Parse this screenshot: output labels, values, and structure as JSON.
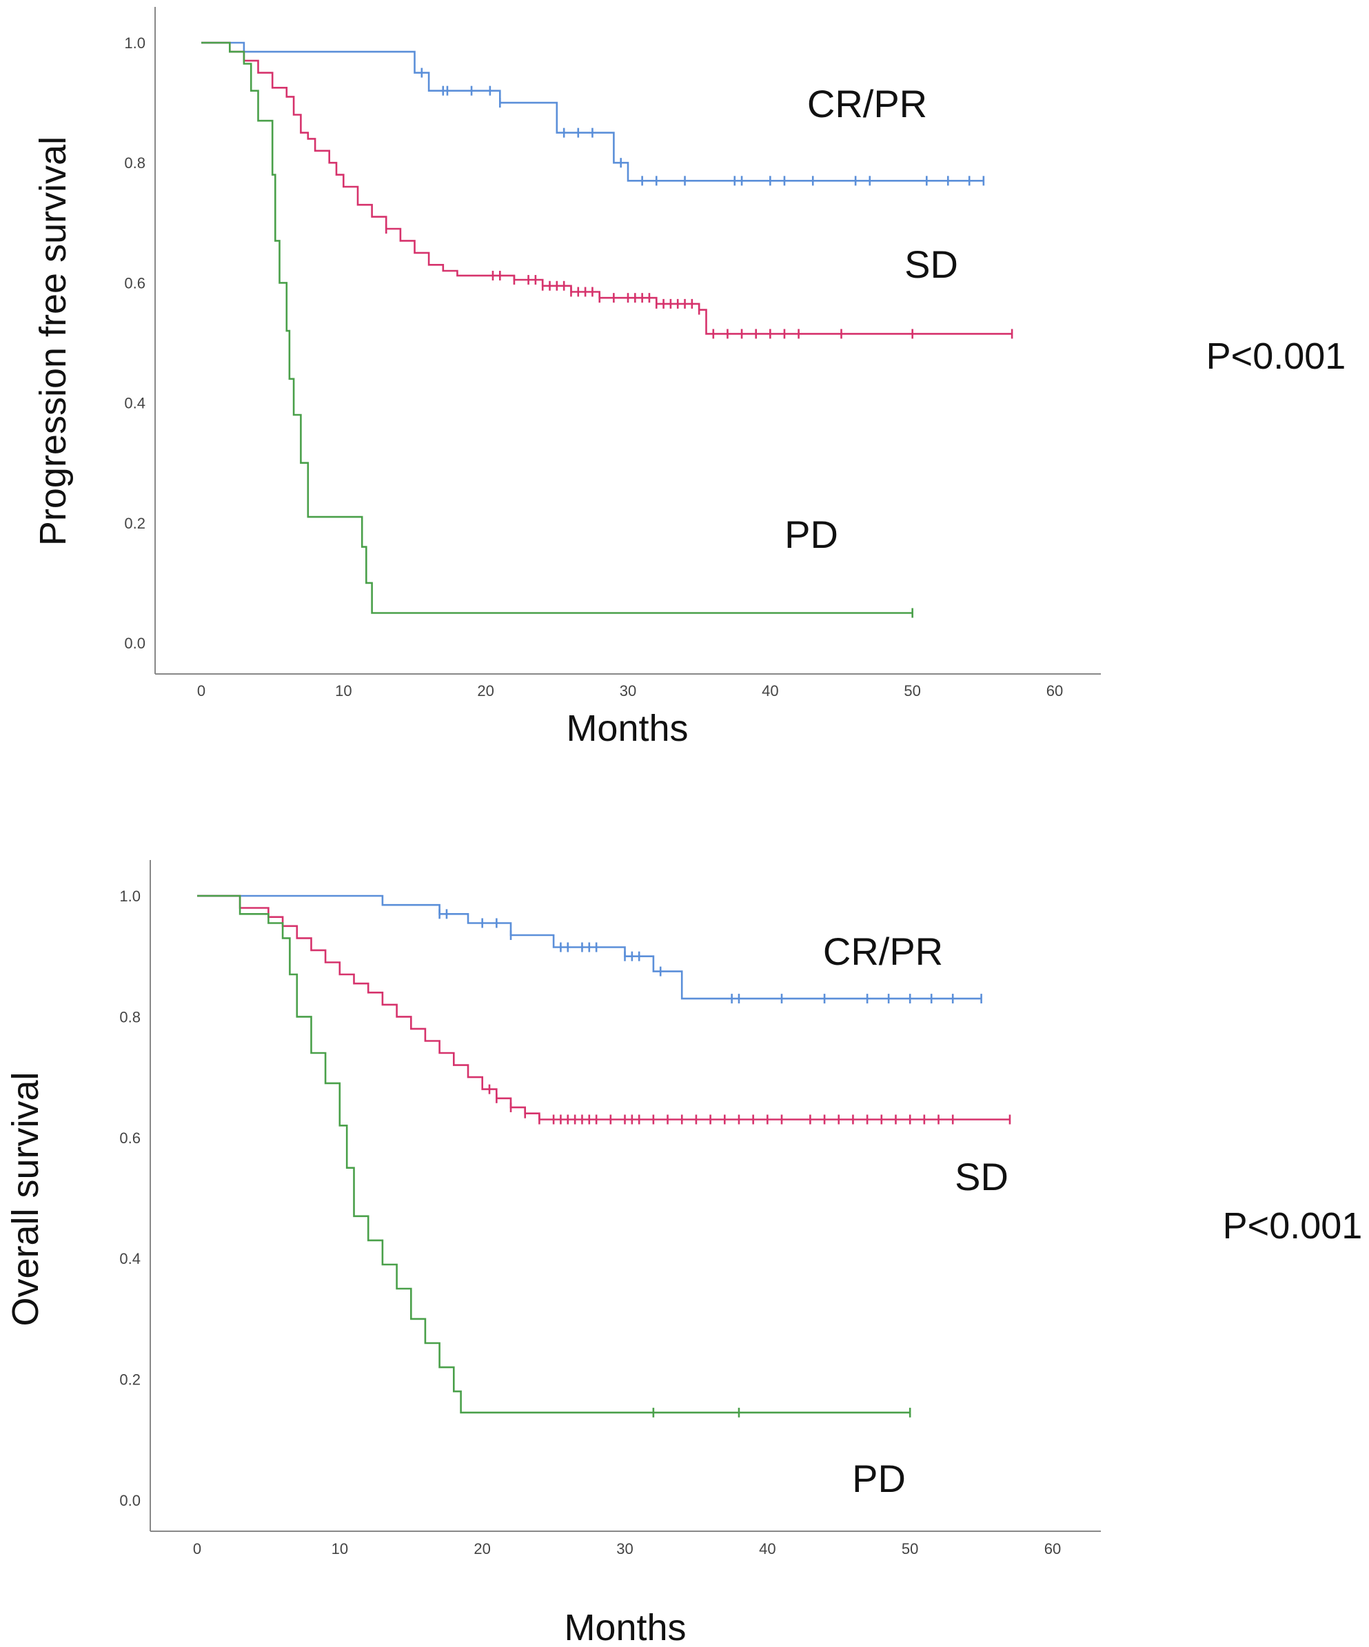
{
  "chart_data": [
    {
      "type": "line",
      "subtype": "kaplan-meier",
      "title": "",
      "xlabel": "Months",
      "ylabel": "Progression free survival",
      "xlim": [
        -3,
        63
      ],
      "ylim": [
        -0.05,
        1.05
      ],
      "xticks": [
        0,
        10,
        20,
        30,
        40,
        50,
        60
      ],
      "yticks": [
        0.0,
        0.2,
        0.4,
        0.6,
        0.8,
        1.0
      ],
      "xtick_labels": [
        "0",
        "10",
        "20",
        "30",
        "40",
        "50",
        "60"
      ],
      "ytick_labels": [
        "0.0",
        "0.2",
        "0.4",
        "0.6",
        "0.8",
        "1.0"
      ],
      "pvalue": "P<0.001",
      "series": [
        {
          "name": "CR/PR",
          "color": "#5b8fd9",
          "steps": [
            [
              0,
              1.0
            ],
            [
              3,
              0.985
            ],
            [
              15,
              0.95
            ],
            [
              16,
              0.92
            ],
            [
              21,
              0.9
            ],
            [
              25,
              0.85
            ],
            [
              29,
              0.8
            ],
            [
              30,
              0.77
            ],
            [
              55,
              0.77
            ]
          ],
          "censors": [
            15.5,
            17,
            17.3,
            19,
            20.3,
            21,
            25.5,
            26.5,
            27.5,
            29.5,
            31,
            32,
            34,
            37.5,
            38,
            40,
            41,
            43,
            46,
            47,
            51,
            52.5,
            54,
            55
          ]
        },
        {
          "name": "SD",
          "color": "#d6336c",
          "steps": [
            [
              0,
              1.0
            ],
            [
              2,
              0.985
            ],
            [
              3,
              0.97
            ],
            [
              4,
              0.95
            ],
            [
              5,
              0.925
            ],
            [
              6,
              0.91
            ],
            [
              6.5,
              0.88
            ],
            [
              7,
              0.85
            ],
            [
              7.5,
              0.84
            ],
            [
              8,
              0.82
            ],
            [
              9,
              0.8
            ],
            [
              9.5,
              0.78
            ],
            [
              10,
              0.76
            ],
            [
              11,
              0.73
            ],
            [
              12,
              0.71
            ],
            [
              13,
              0.69
            ],
            [
              14,
              0.67
            ],
            [
              15,
              0.65
            ],
            [
              16,
              0.63
            ],
            [
              17,
              0.62
            ],
            [
              18,
              0.612
            ],
            [
              22,
              0.605
            ],
            [
              24,
              0.595
            ],
            [
              26,
              0.585
            ],
            [
              28,
              0.575
            ],
            [
              32,
              0.565
            ],
            [
              35,
              0.555
            ],
            [
              35.5,
              0.515
            ],
            [
              57,
              0.515
            ]
          ],
          "censors": [
            13,
            20.5,
            21,
            22,
            23,
            23.5,
            24,
            24.5,
            25,
            25.5,
            26,
            26.5,
            27,
            27.5,
            28,
            29,
            30,
            30.5,
            31,
            31.5,
            32,
            32.5,
            33,
            33.5,
            34,
            34.5,
            35,
            36,
            37,
            38,
            39,
            40,
            41,
            42,
            45,
            50,
            57
          ]
        },
        {
          "name": "PD",
          "color": "#4aa04a",
          "steps": [
            [
              0,
              1.0
            ],
            [
              2,
              0.985
            ],
            [
              3,
              0.965
            ],
            [
              3.5,
              0.92
            ],
            [
              4,
              0.87
            ],
            [
              4.5,
              0.87
            ],
            [
              5,
              0.78
            ],
            [
              5.2,
              0.67
            ],
            [
              5.5,
              0.6
            ],
            [
              6,
              0.52
            ],
            [
              6.2,
              0.44
            ],
            [
              6.5,
              0.38
            ],
            [
              7,
              0.3
            ],
            [
              7.5,
              0.21
            ],
            [
              11,
              0.21
            ],
            [
              11.3,
              0.16
            ],
            [
              11.6,
              0.1
            ],
            [
              12,
              0.05
            ],
            [
              50,
              0.05
            ]
          ],
          "censors": [
            50
          ]
        }
      ],
      "annotations": [
        "CR/PR",
        "SD",
        "PD"
      ]
    },
    {
      "type": "line",
      "subtype": "kaplan-meier",
      "title": "",
      "xlabel": "Months",
      "ylabel": "Overall survival",
      "xlim": [
        -3,
        63
      ],
      "ylim": [
        -0.05,
        1.05
      ],
      "xticks": [
        0,
        10,
        20,
        30,
        40,
        50,
        60
      ],
      "yticks": [
        0.0,
        0.2,
        0.4,
        0.6,
        0.8,
        1.0
      ],
      "xtick_labels": [
        "0",
        "10",
        "20",
        "30",
        "40",
        "50",
        "60"
      ],
      "ytick_labels": [
        "0.0",
        "0.2",
        "0.4",
        "0.6",
        "0.8",
        "1.0"
      ],
      "pvalue": "P<0.001",
      "series": [
        {
          "name": "CR/PR",
          "color": "#5b8fd9",
          "steps": [
            [
              0,
              1.0
            ],
            [
              13,
              0.985
            ],
            [
              17,
              0.97
            ],
            [
              19,
              0.955
            ],
            [
              22,
              0.935
            ],
            [
              25,
              0.915
            ],
            [
              30,
              0.9
            ],
            [
              32,
              0.875
            ],
            [
              34,
              0.83
            ],
            [
              55,
              0.83
            ]
          ],
          "censors": [
            17,
            17.5,
            20,
            21,
            22,
            25.5,
            26,
            27,
            27.5,
            28,
            30,
            30.5,
            31,
            32.5,
            37.5,
            38,
            41,
            44,
            47,
            48.5,
            50,
            51.5,
            53,
            55
          ]
        },
        {
          "name": "SD",
          "color": "#d6336c",
          "steps": [
            [
              0,
              1.0
            ],
            [
              3,
              0.98
            ],
            [
              5,
              0.965
            ],
            [
              6,
              0.95
            ],
            [
              7,
              0.93
            ],
            [
              8,
              0.91
            ],
            [
              9,
              0.89
            ],
            [
              10,
              0.87
            ],
            [
              11,
              0.855
            ],
            [
              12,
              0.84
            ],
            [
              13,
              0.82
            ],
            [
              14,
              0.8
            ],
            [
              15,
              0.78
            ],
            [
              16,
              0.76
            ],
            [
              17,
              0.74
            ],
            [
              18,
              0.72
            ],
            [
              19,
              0.7
            ],
            [
              20,
              0.68
            ],
            [
              21,
              0.665
            ],
            [
              22,
              0.65
            ],
            [
              23,
              0.64
            ],
            [
              24,
              0.63
            ],
            [
              57,
              0.63
            ]
          ],
          "censors": [
            20.5,
            21,
            22,
            23,
            24,
            25,
            25.5,
            26,
            26.5,
            27,
            27.5,
            28,
            29,
            30,
            30.5,
            31,
            32,
            33,
            34,
            35,
            36,
            37,
            38,
            39,
            40,
            41,
            43,
            44,
            45,
            46,
            47,
            48,
            49,
            50,
            51,
            52,
            53,
            57
          ]
        },
        {
          "name": "PD",
          "color": "#4aa04a",
          "steps": [
            [
              0,
              1.0
            ],
            [
              3,
              0.97
            ],
            [
              5,
              0.955
            ],
            [
              6,
              0.93
            ],
            [
              6.5,
              0.87
            ],
            [
              7,
              0.8
            ],
            [
              8,
              0.74
            ],
            [
              9,
              0.69
            ],
            [
              10,
              0.62
            ],
            [
              10.5,
              0.55
            ],
            [
              11,
              0.47
            ],
            [
              12,
              0.43
            ],
            [
              13,
              0.39
            ],
            [
              14,
              0.35
            ],
            [
              15,
              0.3
            ],
            [
              16,
              0.26
            ],
            [
              17,
              0.22
            ],
            [
              18,
              0.18
            ],
            [
              18.5,
              0.145
            ],
            [
              50,
              0.145
            ]
          ],
          "censors": [
            32,
            38,
            50
          ]
        }
      ],
      "annotations": [
        "CR/PR",
        "SD",
        "PD"
      ]
    }
  ]
}
